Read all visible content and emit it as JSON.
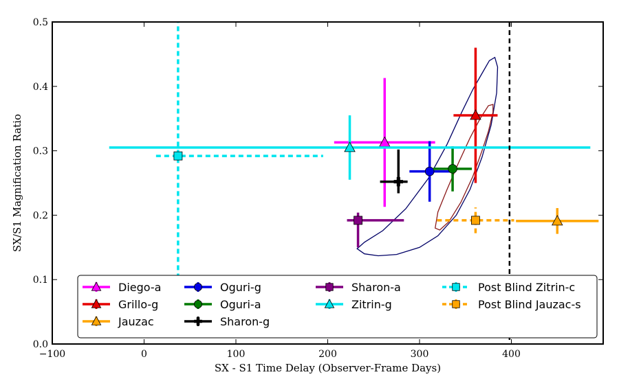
{
  "chart_data": {
    "type": "scatter",
    "title": "",
    "xlabel": "SX - S1 Time Delay (Observer-Frame Days)",
    "ylabel": "SX/S1 Magnification Ratio",
    "xlim": [
      -100,
      500
    ],
    "ylim": [
      0.0,
      0.5
    ],
    "xticks": [
      -100,
      0,
      100,
      200,
      300,
      400
    ],
    "yticks": [
      0.0,
      0.1,
      0.2,
      0.3,
      0.4,
      0.5
    ],
    "xtick_labels": [
      "−100",
      "0",
      "100",
      "200",
      "300",
      "400"
    ],
    "ytick_labels": [
      "0.0",
      "0.1",
      "0.2",
      "0.3",
      "0.4",
      "0.5"
    ],
    "grid": false,
    "legend_position": "bottom",
    "vertical_line": {
      "x": 398,
      "style": "dashed",
      "color": "#000000"
    },
    "series": [
      {
        "name": "Diego-a",
        "color": "#ff00ff",
        "marker": "triangle",
        "dashed": false,
        "x": 262,
        "xerr": [
          55,
          55
        ],
        "y": 0.313,
        "yerr": [
          0.1,
          0.1
        ]
      },
      {
        "name": "Grillo-g",
        "color": "#e60000",
        "marker": "triangle",
        "dashed": false,
        "x": 361,
        "xerr": [
          24,
          24
        ],
        "y": 0.355,
        "yerr": [
          0.105,
          0.105
        ]
      },
      {
        "name": "Jauzac",
        "color": "#ffa500",
        "marker": "triangle",
        "dashed": false,
        "x": 450,
        "xerr": [
          45,
          45
        ],
        "y": 0.191,
        "yerr": [
          0.02,
          0.02
        ]
      },
      {
        "name": "Oguri-g",
        "color": "#0000e6",
        "marker": "circle",
        "dashed": false,
        "x": 311,
        "xerr": [
          22,
          22
        ],
        "y": 0.268,
        "yerr": [
          0.047,
          0.047
        ]
      },
      {
        "name": "Oguri-a",
        "color": "#007a00",
        "marker": "circle",
        "dashed": false,
        "x": 336,
        "xerr": [
          21,
          21
        ],
        "y": 0.272,
        "yerr": [
          0.035,
          0.035
        ]
      },
      {
        "name": "Sharon-g",
        "color": "#000000",
        "marker": "plus",
        "dashed": false,
        "x": 277,
        "xerr": [
          20,
          10
        ],
        "y": 0.252,
        "yerr": [
          0.018,
          0.05
        ]
      },
      {
        "name": "Sharon-a",
        "color": "#800080",
        "marker": "square",
        "dashed": false,
        "x": 233,
        "xerr": [
          12,
          50
        ],
        "y": 0.192,
        "yerr": [
          0.042,
          0.012
        ]
      },
      {
        "name": "Zitrin-g",
        "color": "#00e5ee",
        "marker": "triangle",
        "dashed": false,
        "x": 224,
        "xerr": [
          262,
          262
        ],
        "y": 0.305,
        "yerr": [
          0.05,
          0.05
        ]
      },
      {
        "name": "Post Blind Zitrin-c",
        "color": "#00e5ee",
        "marker": "square",
        "dashed": true,
        "x": 37,
        "xerr": [
          24,
          158
        ],
        "y": 0.292,
        "yerr": [
          0.19,
          0.21
        ]
      },
      {
        "name": "Post Blind Jauzac-s",
        "color": "#ffa500",
        "marker": "square",
        "dashed": true,
        "x": 361,
        "xerr": [
          42,
          42
        ],
        "y": 0.192,
        "yerr": [
          0.02,
          0.02
        ]
      }
    ],
    "contours": [
      {
        "name": "outer-contour",
        "color": "#000066",
        "points": [
          [
            232,
            0.148
          ],
          [
            240,
            0.14
          ],
          [
            255,
            0.137
          ],
          [
            275,
            0.139
          ],
          [
            300,
            0.15
          ],
          [
            320,
            0.168
          ],
          [
            340,
            0.2
          ],
          [
            355,
            0.24
          ],
          [
            368,
            0.29
          ],
          [
            378,
            0.34
          ],
          [
            384,
            0.39
          ],
          [
            385,
            0.43
          ],
          [
            382,
            0.445
          ],
          [
            376,
            0.44
          ],
          [
            368,
            0.42
          ],
          [
            358,
            0.395
          ],
          [
            346,
            0.36
          ],
          [
            330,
            0.31
          ],
          [
            310,
            0.258
          ],
          [
            285,
            0.21
          ],
          [
            260,
            0.176
          ],
          [
            240,
            0.158
          ],
          [
            232,
            0.148
          ]
        ]
      },
      {
        "name": "inner-contour",
        "color": "#8b1a1a",
        "points": [
          [
            317,
            0.18
          ],
          [
            322,
            0.177
          ],
          [
            332,
            0.19
          ],
          [
            345,
            0.22
          ],
          [
            358,
            0.26
          ],
          [
            368,
            0.3
          ],
          [
            375,
            0.33
          ],
          [
            380,
            0.36
          ],
          [
            380,
            0.372
          ],
          [
            375,
            0.37
          ],
          [
            366,
            0.35
          ],
          [
            355,
            0.32
          ],
          [
            342,
            0.28
          ],
          [
            330,
            0.24
          ],
          [
            320,
            0.205
          ],
          [
            317,
            0.18
          ]
        ]
      }
    ]
  }
}
